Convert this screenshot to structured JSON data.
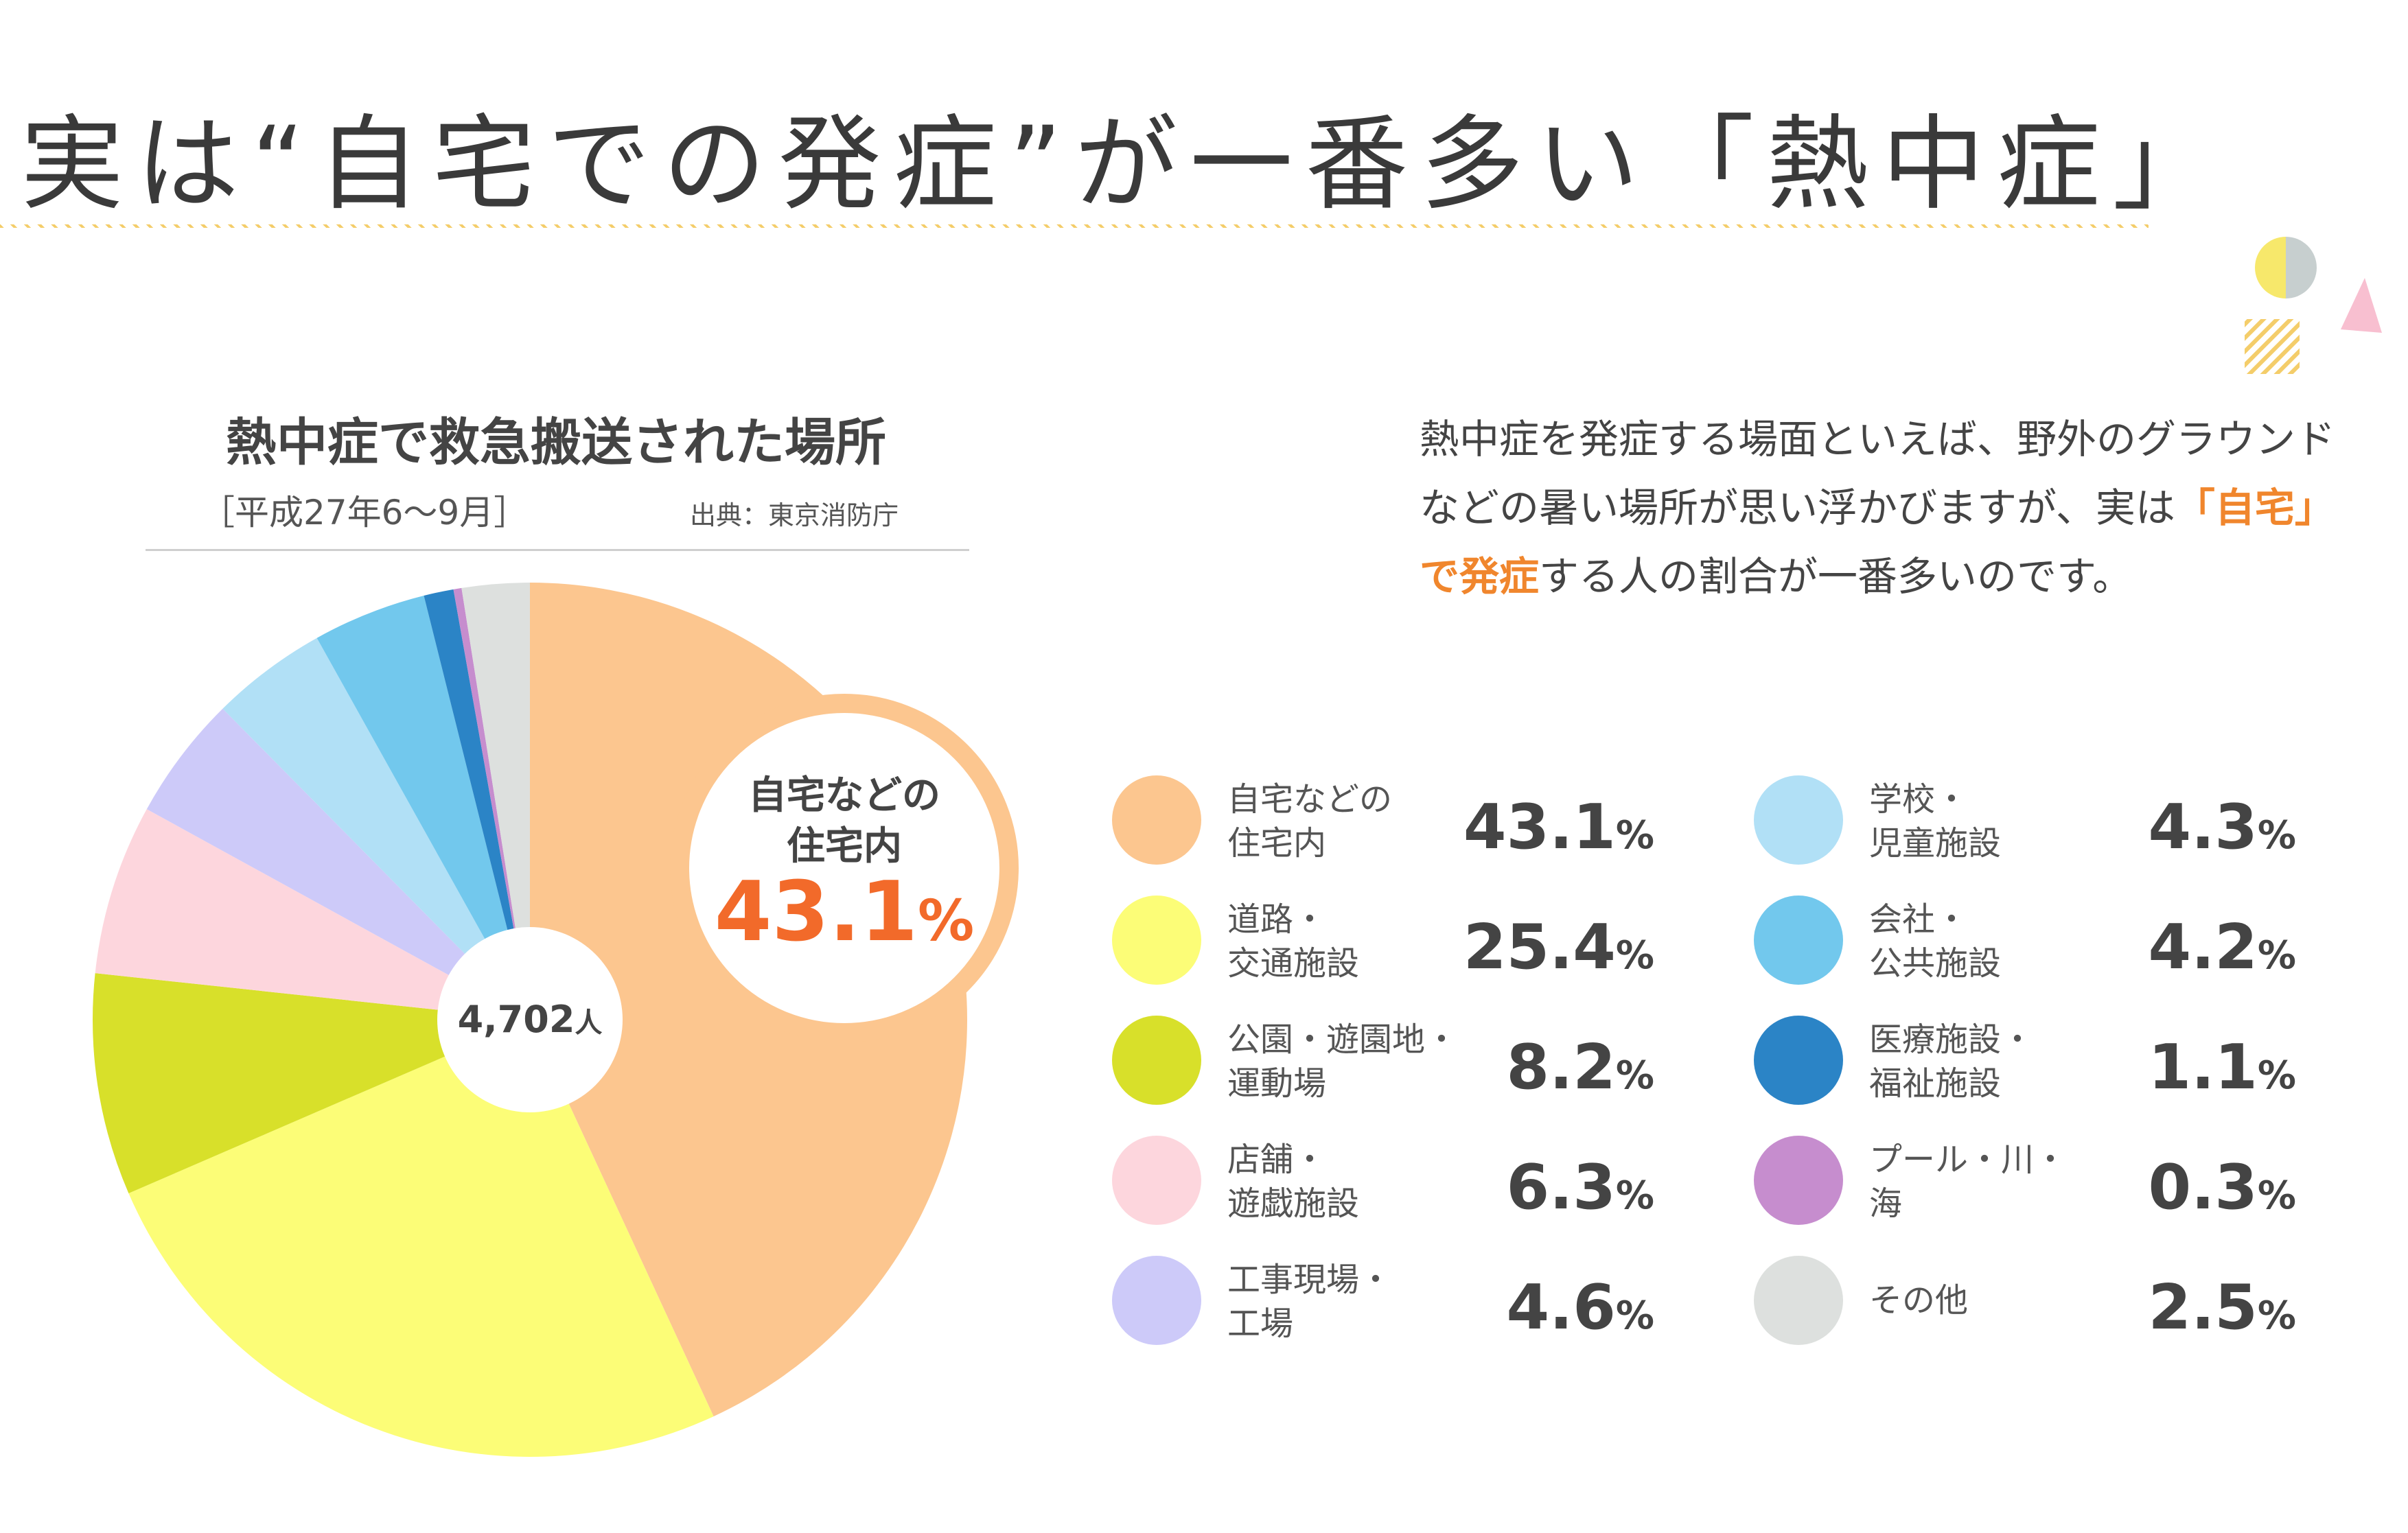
{
  "page": {
    "title": "実は“自宅での発症”が一番多い「熱中症」",
    "description_parts": [
      "熱中症を発症する場面といえば、野外のグラウンドなどの暑い場所が思い浮かびますが、実は",
      "「自宅」で発症",
      "する人の割合が一番多いのです。"
    ],
    "accent_color": "#f0862d",
    "deco_colors": {
      "yellow": "#f7e86b",
      "gray": "#c7cfcf",
      "pink": "#f8bfd0",
      "hatch": "#f4cd6a"
    }
  },
  "chart_data": {
    "type": "pie",
    "title": "熱中症で救急搬送された場所",
    "period": "［平成27年6〜9月］",
    "source": "出典：東京消防庁",
    "total_label": "4,702人",
    "total_value": "4,702",
    "total_unit": "人",
    "callout": {
      "line1": "自宅などの",
      "line2": "住宅内",
      "value": "43.1",
      "unit": "%"
    },
    "unit": "%",
    "slices": [
      {
        "label": "自宅などの\n住宅内",
        "value": 43.1,
        "color": "#fcc68f"
      },
      {
        "label": "道路・\n交通施設",
        "value": 25.4,
        "color": "#fcfd77"
      },
      {
        "label": "公園・遊園地・\n運動場",
        "value": 8.2,
        "color": "#d8e02a"
      },
      {
        "label": "店舗・\n遊戯施設",
        "value": 6.3,
        "color": "#fdd6dd"
      },
      {
        "label": "工事現場・\n工場",
        "value": 4.6,
        "color": "#cdcaf9"
      },
      {
        "label": "学校・\n児童施設",
        "value": 4.3,
        "color": "#b1e0f6"
      },
      {
        "label": "会社・\n公共施設",
        "value": 4.2,
        "color": "#72c8ed"
      },
      {
        "label": "医療施設・\n福祉施設",
        "value": 1.1,
        "color": "#2b84c6"
      },
      {
        "label": "プール・川・\n海",
        "value": 0.3,
        "color": "#c68dce"
      },
      {
        "label": "その他",
        "value": 2.5,
        "color": "#dde0de"
      }
    ]
  }
}
